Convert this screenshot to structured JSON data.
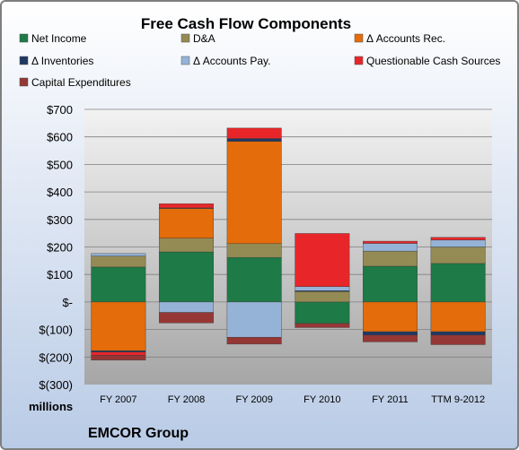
{
  "chart_data": {
    "type": "bar",
    "stacked": true,
    "title": "Free Cash Flow Components",
    "unit_label": "millions",
    "footer": "EMCOR Group",
    "categories": [
      "FY 2007",
      "FY 2008",
      "FY 2009",
      "FY 2010",
      "FY 2011",
      "TTM 9-2012"
    ],
    "ylim": [
      -300,
      700
    ],
    "y_ticks": [
      700,
      600,
      500,
      400,
      300,
      200,
      100,
      0,
      -100,
      -200,
      -300
    ],
    "y_tick_labels": [
      "$700",
      "$600",
      "$500",
      "$400",
      "$300",
      "$200",
      "$100",
      "$-",
      "$(100)",
      "$(200)",
      "$(300)"
    ],
    "legend_position": "top",
    "grid": true,
    "series": [
      {
        "name": "Net Income",
        "color": "#1e7a46",
        "values": [
          127,
          182,
          162,
          -78,
          130,
          140
        ]
      },
      {
        "name": "D&A",
        "color": "#948a54",
        "values": [
          40,
          50,
          50,
          38,
          55,
          60
        ]
      },
      {
        "name": "Δ Accounts Rec.",
        "color": "#e46c0a",
        "values": [
          -177,
          108,
          372,
          0,
          -108,
          -108
        ]
      },
      {
        "name": "Δ Inventories",
        "color": "#1f3864",
        "values": [
          -5,
          2,
          10,
          3,
          -12,
          -12
        ]
      },
      {
        "name": "Δ Accounts Pay.",
        "color": "#95b3d7",
        "values": [
          9,
          -38,
          -128,
          15,
          28,
          25
        ]
      },
      {
        "name": "Questionable Cash Sources",
        "color": "#e8262a",
        "values": [
          -12,
          15,
          38,
          193,
          8,
          10
        ]
      },
      {
        "name": "Capital Expenditures",
        "color": "#953735",
        "values": [
          -17,
          -38,
          -25,
          -15,
          -25,
          -35
        ]
      }
    ]
  }
}
